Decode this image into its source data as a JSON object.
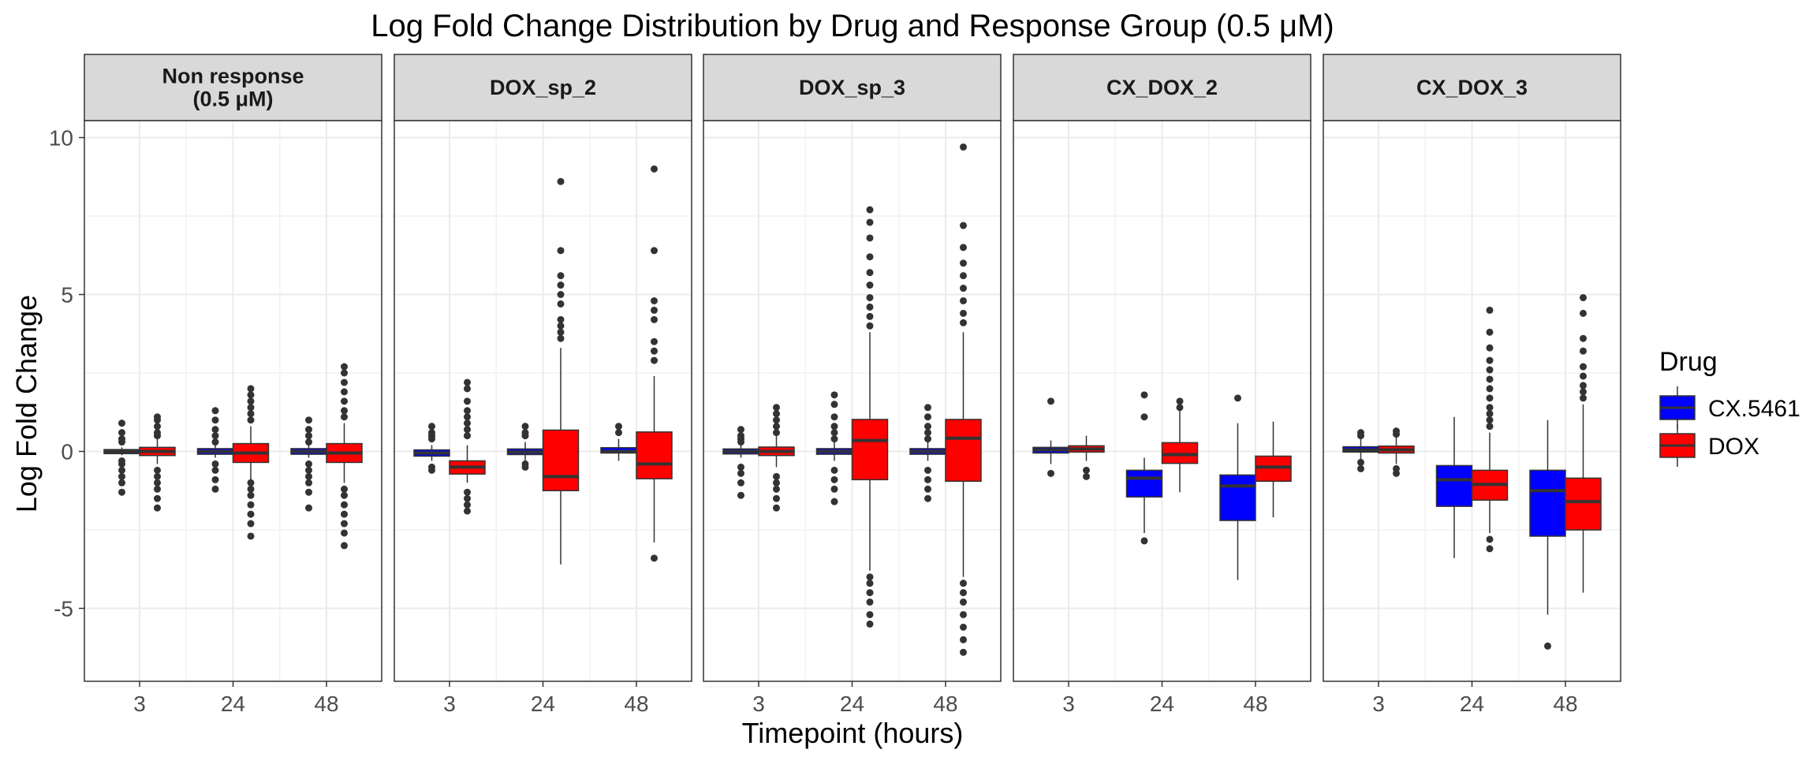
{
  "chart_data": {
    "type": "boxplot",
    "title": "Log Fold Change Distribution by Drug and Response Group (0.5 μM)",
    "xlabel": "Timepoint (hours)",
    "ylabel": "Log Fold Change",
    "x_categories": [
      "3",
      "24",
      "48"
    ],
    "y_ticks": [
      -5,
      0,
      5,
      10
    ],
    "y_tick_labels": [
      "-5",
      "0",
      "5",
      "10"
    ],
    "ylim": [
      -7.2,
      12.6
    ],
    "grid": true,
    "legend": {
      "title": "Drug",
      "position": "right",
      "entries": [
        {
          "name": "CX.5461",
          "color": "#0000ff"
        },
        {
          "name": "DOX",
          "color": "#ff0000"
        }
      ]
    },
    "panels": [
      {
        "label": "Non response\n(0.5 μM)",
        "groups": [
          {
            "timepoint": "3",
            "drug": "CX.5461",
            "lw": -0.12,
            "q1": -0.07,
            "median": 0.0,
            "q3": 0.06,
            "uw": 0.13,
            "outliers": [
              -1.3,
              -1.0,
              -0.8,
              -0.6,
              -0.4,
              -0.3,
              0.3,
              0.4,
              0.6,
              0.9
            ]
          },
          {
            "timepoint": "3",
            "drug": "DOX",
            "lw": -0.4,
            "q1": -0.13,
            "median": 0.0,
            "q3": 0.13,
            "uw": 0.4,
            "outliers": [
              -1.8,
              -1.5,
              -1.2,
              -1.0,
              -0.8,
              -0.6,
              0.5,
              0.6,
              0.8,
              1.0,
              1.1
            ]
          },
          {
            "timepoint": "24",
            "drug": "CX.5461",
            "lw": -0.2,
            "q1": -0.09,
            "median": 0.0,
            "q3": 0.09,
            "uw": 0.2,
            "outliers": [
              -1.2,
              -0.9,
              -0.6,
              -0.4,
              0.3,
              0.5,
              0.7,
              1.0,
              1.3
            ]
          },
          {
            "timepoint": "24",
            "drug": "DOX",
            "lw": -0.9,
            "q1": -0.35,
            "median": -0.05,
            "q3": 0.25,
            "uw": 0.8,
            "outliers": [
              -2.7,
              -2.3,
              -2.0,
              -1.7,
              -1.4,
              -1.2,
              -1.0,
              1.0,
              1.2,
              1.4,
              1.6,
              1.8,
              2.0
            ]
          },
          {
            "timepoint": "48",
            "drug": "CX.5461",
            "lw": -0.2,
            "q1": -0.09,
            "median": 0.0,
            "q3": 0.09,
            "uw": 0.2,
            "outliers": [
              -1.8,
              -1.3,
              -1.0,
              -0.8,
              -0.6,
              -0.4,
              0.3,
              0.5,
              0.7,
              1.0
            ]
          },
          {
            "timepoint": "48",
            "drug": "DOX",
            "lw": -1.0,
            "q1": -0.35,
            "median": -0.05,
            "q3": 0.25,
            "uw": 0.9,
            "outliers": [
              -3.0,
              -2.6,
              -2.3,
              -2.0,
              -1.7,
              -1.4,
              -1.2,
              1.1,
              1.3,
              1.6,
              1.9,
              2.2,
              2.5,
              2.7
            ]
          }
        ]
      },
      {
        "label": "DOX_sp_2",
        "groups": [
          {
            "timepoint": "3",
            "drug": "CX.5461",
            "lw": -0.3,
            "q1": -0.15,
            "median": -0.05,
            "q3": 0.05,
            "uw": 0.2,
            "outliers": [
              -0.6,
              -0.5,
              0.4,
              0.5,
              0.6,
              0.8
            ]
          },
          {
            "timepoint": "3",
            "drug": "DOX",
            "lw": -1.0,
            "q1": -0.72,
            "median": -0.5,
            "q3": -0.3,
            "uw": 0.2,
            "outliers": [
              -1.9,
              -1.7,
              -1.5,
              -1.3,
              0.5,
              0.7,
              0.9,
              1.1,
              1.3,
              1.6,
              2.0,
              2.2
            ]
          },
          {
            "timepoint": "24",
            "drug": "CX.5461",
            "lw": -0.3,
            "q1": -0.1,
            "median": -0.02,
            "q3": 0.08,
            "uw": 0.3,
            "outliers": [
              -0.5,
              -0.4,
              0.5,
              0.6,
              0.8
            ]
          },
          {
            "timepoint": "24",
            "drug": "DOX",
            "lw": -3.6,
            "q1": -1.25,
            "median": -0.8,
            "q3": 0.68,
            "uw": 3.3,
            "outliers": [
              3.6,
              3.8,
              4.0,
              4.2,
              4.7,
              5.0,
              5.3,
              5.6,
              6.4,
              8.6
            ]
          },
          {
            "timepoint": "48",
            "drug": "CX.5461",
            "lw": -0.3,
            "q1": -0.05,
            "median": 0.0,
            "q3": 0.12,
            "uw": 0.4,
            "outliers": [
              0.6,
              0.8
            ]
          },
          {
            "timepoint": "48",
            "drug": "DOX",
            "lw": -2.9,
            "q1": -0.87,
            "median": -0.4,
            "q3": 0.62,
            "uw": 2.4,
            "outliers": [
              -3.4,
              2.9,
              3.2,
              3.5,
              4.2,
              4.5,
              4.8,
              6.4,
              9.0
            ]
          }
        ]
      },
      {
        "label": "DOX_sp_3",
        "groups": [
          {
            "timepoint": "3",
            "drug": "CX.5461",
            "lw": -0.2,
            "q1": -0.08,
            "median": 0.0,
            "q3": 0.08,
            "uw": 0.2,
            "outliers": [
              -1.4,
              -1.0,
              -0.7,
              -0.5,
              0.3,
              0.4,
              0.5,
              0.7
            ]
          },
          {
            "timepoint": "3",
            "drug": "DOX",
            "lw": -0.5,
            "q1": -0.13,
            "median": 0.0,
            "q3": 0.14,
            "uw": 0.5,
            "outliers": [
              -1.8,
              -1.5,
              -1.2,
              -1.0,
              -0.8,
              0.6,
              0.8,
              1.0,
              1.2,
              1.4
            ]
          },
          {
            "timepoint": "24",
            "drug": "CX.5461",
            "lw": -0.3,
            "q1": -0.09,
            "median": 0.0,
            "q3": 0.09,
            "uw": 0.3,
            "outliers": [
              -1.6,
              -1.2,
              -0.9,
              -0.6,
              0.4,
              0.6,
              0.8,
              1.1,
              1.5,
              1.8
            ]
          },
          {
            "timepoint": "24",
            "drug": "DOX",
            "lw": -3.8,
            "q1": -0.9,
            "median": 0.35,
            "q3": 1.02,
            "uw": 3.8,
            "outliers": [
              -5.5,
              -5.2,
              -4.8,
              -4.5,
              -4.2,
              -4.0,
              4.0,
              4.3,
              4.6,
              4.9,
              5.3,
              5.7,
              6.2,
              6.8,
              7.3,
              7.7
            ]
          },
          {
            "timepoint": "48",
            "drug": "CX.5461",
            "lw": -0.3,
            "q1": -0.09,
            "median": 0.0,
            "q3": 0.09,
            "uw": 0.3,
            "outliers": [
              -1.5,
              -1.2,
              -0.9,
              -0.6,
              0.4,
              0.6,
              0.8,
              1.1,
              1.4
            ]
          },
          {
            "timepoint": "48",
            "drug": "DOX",
            "lw": -4.0,
            "q1": -0.95,
            "median": 0.42,
            "q3": 1.02,
            "uw": 3.8,
            "outliers": [
              -6.4,
              -6.0,
              -5.6,
              -5.2,
              -4.8,
              -4.5,
              -4.2,
              4.1,
              4.4,
              4.8,
              5.2,
              5.6,
              6.0,
              6.5,
              7.2,
              9.7
            ]
          }
        ]
      },
      {
        "label": "CX_DOX_2",
        "groups": [
          {
            "timepoint": "3",
            "drug": "CX.5461",
            "lw": -0.4,
            "q1": -0.05,
            "median": 0.05,
            "q3": 0.13,
            "uw": 0.35,
            "outliers": [
              -0.7,
              1.6
            ]
          },
          {
            "timepoint": "3",
            "drug": "DOX",
            "lw": -0.3,
            "q1": -0.02,
            "median": 0.08,
            "q3": 0.18,
            "uw": 0.5,
            "outliers": [
              -0.8,
              -0.6
            ]
          },
          {
            "timepoint": "24",
            "drug": "CX.5461",
            "lw": -2.6,
            "q1": -1.45,
            "median": -0.85,
            "q3": -0.6,
            "uw": -0.2,
            "outliers": [
              -2.85,
              1.1,
              1.8
            ]
          },
          {
            "timepoint": "24",
            "drug": "DOX",
            "lw": -1.3,
            "q1": -0.38,
            "median": -0.1,
            "q3": 0.28,
            "uw": 1.3,
            "outliers": [
              1.4,
              1.6
            ]
          },
          {
            "timepoint": "48",
            "drug": "CX.5461",
            "lw": -4.1,
            "q1": -2.2,
            "median": -1.1,
            "q3": -0.75,
            "uw": 0.9,
            "outliers": [
              1.7
            ]
          },
          {
            "timepoint": "48",
            "drug": "DOX",
            "lw": -2.1,
            "q1": -0.95,
            "median": -0.5,
            "q3": -0.15,
            "uw": 0.95,
            "outliers": []
          }
        ]
      },
      {
        "label": "CX_DOX_3",
        "groups": [
          {
            "timepoint": "3",
            "drug": "CX.5461",
            "lw": -0.3,
            "q1": -0.02,
            "median": 0.05,
            "q3": 0.15,
            "uw": 0.4,
            "outliers": [
              -0.55,
              -0.35,
              0.5,
              0.6
            ]
          },
          {
            "timepoint": "3",
            "drug": "DOX",
            "lw": -0.4,
            "q1": -0.05,
            "median": 0.05,
            "q3": 0.17,
            "uw": 0.45,
            "outliers": [
              -0.7,
              -0.55,
              0.55,
              0.65
            ]
          },
          {
            "timepoint": "24",
            "drug": "CX.5461",
            "lw": -3.4,
            "q1": -1.75,
            "median": -0.9,
            "q3": -0.45,
            "uw": 1.1,
            "outliers": []
          },
          {
            "timepoint": "24",
            "drug": "DOX",
            "lw": -2.6,
            "q1": -1.55,
            "median": -1.05,
            "q3": -0.6,
            "uw": 0.6,
            "outliers": [
              -3.1,
              -2.8,
              0.8,
              1.0,
              1.2,
              1.4,
              1.7,
              2.0,
              2.3,
              2.6,
              2.9,
              3.3,
              3.8,
              4.5
            ]
          },
          {
            "timepoint": "48",
            "drug": "CX.5461",
            "lw": -5.2,
            "q1": -2.7,
            "median": -1.25,
            "q3": -0.6,
            "uw": 1.0,
            "outliers": [
              -6.2
            ]
          },
          {
            "timepoint": "48",
            "drug": "DOX",
            "lw": -4.5,
            "q1": -2.5,
            "median": -1.6,
            "q3": -0.85,
            "uw": 1.5,
            "outliers": [
              1.7,
              1.9,
              2.1,
              2.4,
              2.7,
              3.2,
              3.6,
              4.4,
              4.9
            ]
          }
        ]
      }
    ]
  }
}
